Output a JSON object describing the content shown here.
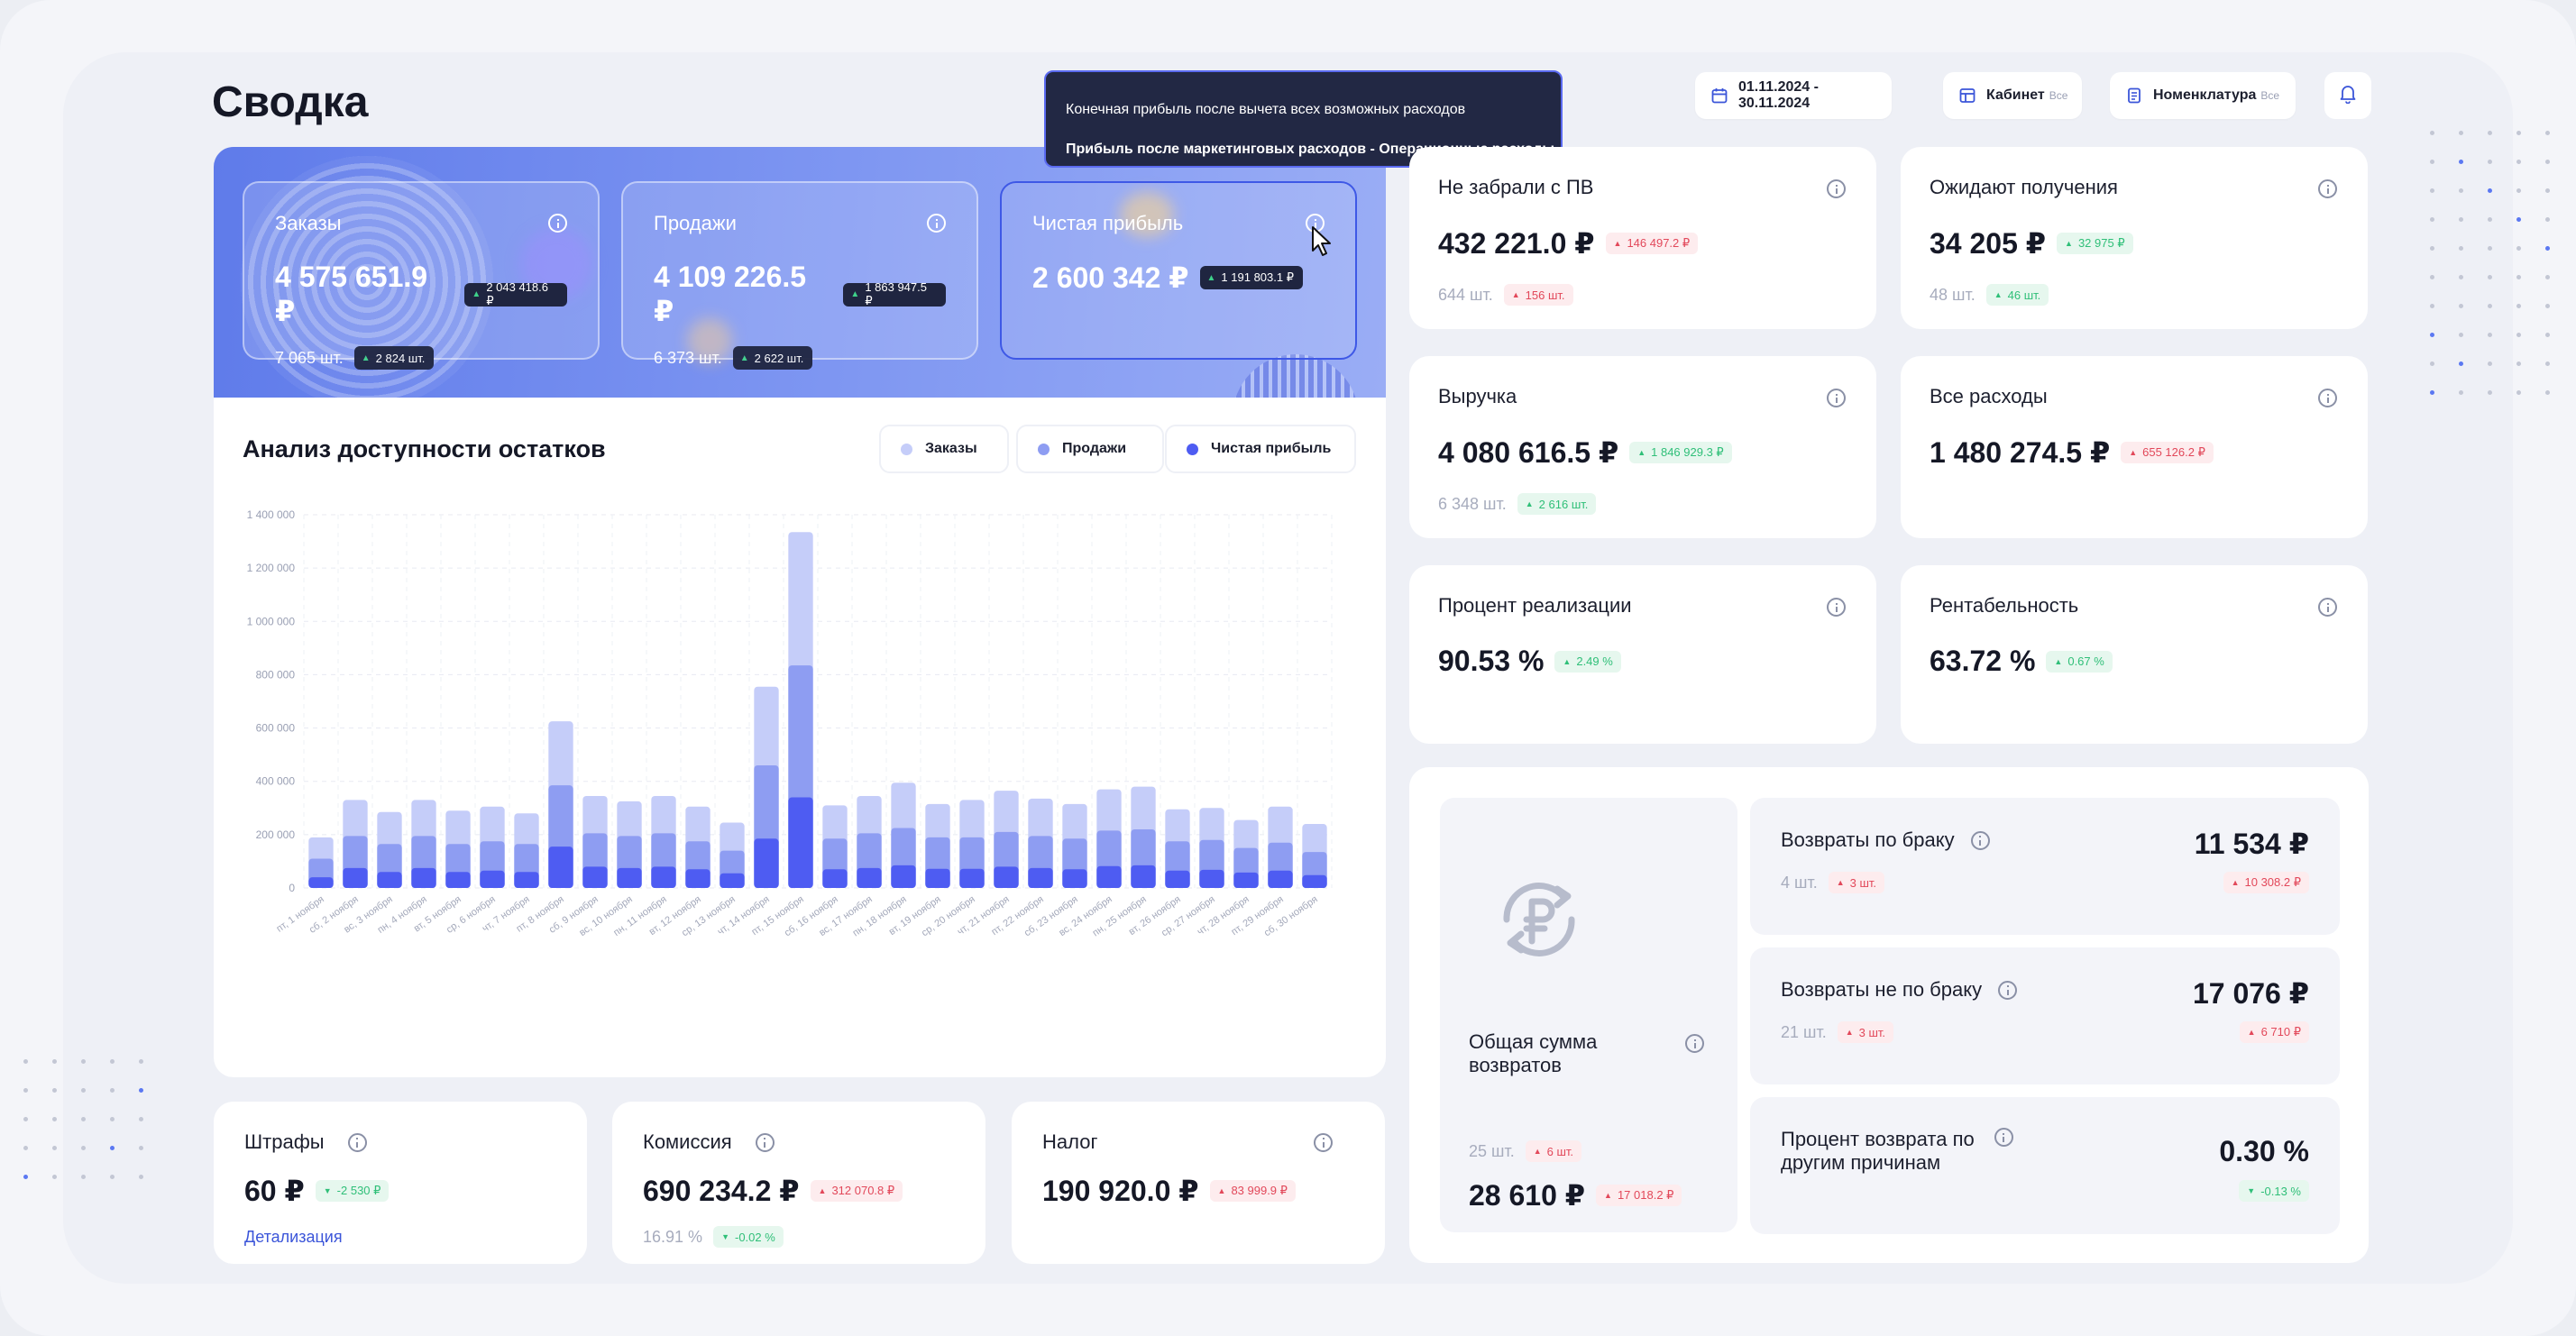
{
  "page": {
    "title": "Сводка"
  },
  "tooltip": {
    "line1": "Конечная прибыль после вычета всех возможных расходов",
    "line2": "Прибыль после маркетинговых расходов - Операционные расходы"
  },
  "toolbar": {
    "date_range": "01.11.2024 - 30.11.2024",
    "cabinet_label": "Кабинет",
    "cabinet_value": "Все",
    "nomenclature_label": "Номенклатура",
    "nomenclature_value": "Все",
    "icons": {
      "calendar": "calendar-icon",
      "cabinet": "cabinet-icon",
      "nomenclature": "document-icon",
      "bell": "bell-icon"
    }
  },
  "hero": {
    "orders": {
      "label": "Заказы",
      "value": "4 575 651.9 ₽",
      "delta": "2 043 418.6 ₽",
      "qty": "7 065 шт.",
      "qty_delta": "2 824 шт."
    },
    "sales": {
      "label": "Продажи",
      "value": "4 109 226.5 ₽",
      "delta": "1 863 947.5 ₽",
      "qty": "6 373 шт.",
      "qty_delta": "2 622 шт."
    },
    "profit": {
      "label": "Чистая прибыль",
      "value": "2 600 342 ₽",
      "delta": "1 191 803.1 ₽"
    }
  },
  "chart_panel": {
    "title": "Анализ доступности остатков",
    "legend": [
      "Заказы",
      "Продажи",
      "Чистая прибыль"
    ]
  },
  "chart_data": {
    "type": "bar",
    "stacked": false,
    "overlapping": true,
    "ylim": [
      0,
      1400000
    ],
    "yticks": [
      "0",
      "200 000",
      "400 000",
      "600 000",
      "800 000",
      "1 000 000",
      "1 200 000",
      "1 400 000"
    ],
    "categories": [
      "пт, 1 ноября",
      "сб, 2 ноября",
      "вс, 3 ноября",
      "пн, 4 ноября",
      "вт, 5 ноября",
      "ср, 6 ноября",
      "чт, 7 ноября",
      "пт, 8 ноября",
      "сб, 9 ноября",
      "вс, 10 ноября",
      "пн, 11 ноября",
      "вт, 12 ноября",
      "ср, 13 ноября",
      "чт, 14 ноября",
      "пт, 15 ноября",
      "сб, 16 ноября",
      "вс, 17 ноября",
      "пн, 18 ноября",
      "вт, 19 ноября",
      "ср, 20 ноября",
      "чт, 21 ноября",
      "пт, 22 ноября",
      "сб, 23 ноября",
      "вс, 24 ноября",
      "пн, 25 ноября",
      "вт, 26 ноября",
      "ср, 27 ноября",
      "чт, 28 ноября",
      "пт, 29 ноября",
      "сб, 30 ноября"
    ],
    "series": [
      {
        "name": "Заказы",
        "color": "#c5cdf9",
        "values": [
          190000,
          330000,
          285000,
          330000,
          290000,
          305000,
          280000,
          625000,
          345000,
          325000,
          345000,
          305000,
          245000,
          755000,
          1335000,
          310000,
          345000,
          395000,
          315000,
          330000,
          365000,
          335000,
          315000,
          370000,
          380000,
          295000,
          300000,
          255000,
          305000,
          240000
        ]
      },
      {
        "name": "Продажи",
        "color": "#8e9df2",
        "values": [
          110000,
          195000,
          165000,
          195000,
          165000,
          175000,
          165000,
          385000,
          205000,
          195000,
          205000,
          175000,
          140000,
          460000,
          835000,
          185000,
          205000,
          225000,
          190000,
          190000,
          210000,
          195000,
          185000,
          215000,
          220000,
          175000,
          180000,
          150000,
          170000,
          135000
        ]
      },
      {
        "name": "Чистая прибыль",
        "color": "#4e5cf2",
        "values": [
          40000,
          75000,
          60000,
          75000,
          60000,
          65000,
          60000,
          155000,
          80000,
          75000,
          80000,
          70000,
          55000,
          185000,
          340000,
          70000,
          75000,
          85000,
          72000,
          72000,
          80000,
          75000,
          70000,
          82000,
          85000,
          65000,
          68000,
          58000,
          65000,
          48000
        ]
      }
    ]
  },
  "cards": {
    "not_picked": {
      "title": "Не забрали с ПВ",
      "value": "432 221.0 ₽",
      "delta": "146 497.2 ₽",
      "qty": "644 шт.",
      "qty_delta": "156 шт."
    },
    "awaiting": {
      "title": "Ожидают получения",
      "value": "34 205 ₽",
      "delta": "32 975 ₽",
      "qty": "48 шт.",
      "qty_delta": "46 шт."
    },
    "revenue": {
      "title": "Выручка",
      "value": "4 080 616.5 ₽",
      "delta": "1 846 929.3 ₽",
      "qty": "6 348 шт.",
      "qty_delta": "2 616 шт."
    },
    "expenses": {
      "title": "Все расходы",
      "value": "1 480 274.5 ₽",
      "delta": "655 126.2 ₽"
    },
    "realization": {
      "title": "Процент реализации",
      "value": "90.53 %",
      "delta": "2.49 %"
    },
    "profitability": {
      "title": "Рентабельность",
      "value": "63.72 %",
      "delta": "0.67 %"
    }
  },
  "returns": {
    "total": {
      "title": "Общая сумма возвратов",
      "qty": "25 шт.",
      "qty_delta": "6 шт.",
      "value": "28 610 ₽",
      "delta": "17 018.2 ₽"
    },
    "defect": {
      "title": "Возвраты по браку",
      "qty": "4 шт.",
      "qty_delta": "3 шт.",
      "value": "11 534 ₽",
      "delta": "10 308.2 ₽"
    },
    "non_defect": {
      "title": "Возвраты не по браку",
      "qty": "21 шт.",
      "qty_delta": "3 шт.",
      "value": "17 076 ₽",
      "delta": "6 710 ₽"
    },
    "other_pct": {
      "title_line1": "Процент возврата по",
      "title_line2": "другим причинам",
      "value": "0.30 %",
      "delta": "-0.13 %"
    }
  },
  "bottom": {
    "fines": {
      "title": "Штрафы",
      "value": "60 ₽",
      "delta": "-2 530 ₽",
      "link": "Детализация"
    },
    "commission": {
      "title": "Комиссия",
      "value": "690 234.2 ₽",
      "delta": "312 070.8 ₽",
      "pct": "16.91 %",
      "pct_delta": "-0.02 %"
    },
    "tax": {
      "title": "Налог",
      "value": "190 920.0 ₽",
      "delta": "83 999.9 ₽"
    }
  },
  "colors": {
    "accent": "#4e5cf2",
    "hero_from": "#5f7bea",
    "hero_to": "#9aadf5",
    "positive": "#2fbf78",
    "negative": "#e2485a"
  }
}
